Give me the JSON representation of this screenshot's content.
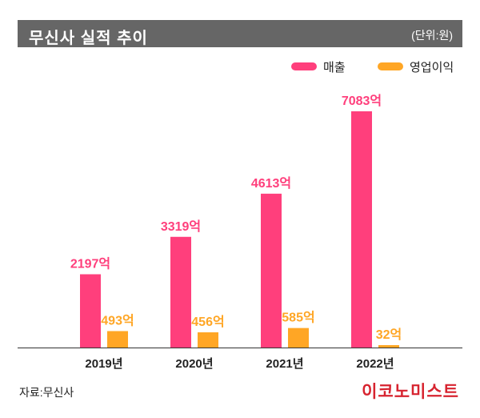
{
  "header": {
    "title": "무신사 실적 추이",
    "unit": "(단위:원)"
  },
  "footer": {
    "source": "자료:무신사",
    "brand": "이코노미스트"
  },
  "colors": {
    "revenue": "#ff3f7c",
    "operating_profit": "#ffa625",
    "header_bg": "#666666",
    "brand": "#d7232f"
  },
  "chart_data": {
    "type": "bar",
    "title": "무신사 실적 추이",
    "unit": "(단위:원)",
    "categories": [
      "2019년",
      "2020년",
      "2021년",
      "2022년"
    ],
    "series": [
      {
        "name": "매출",
        "values": [
          2197,
          3319,
          4613,
          7083
        ],
        "labels": [
          "2197억",
          "3319억",
          "4613억",
          "7083억"
        ],
        "color": "#ff3f7c"
      },
      {
        "name": "영업이익",
        "values": [
          493,
          456,
          585,
          32
        ],
        "labels": [
          "493억",
          "456억",
          "585억",
          "32억"
        ],
        "color": "#ffa625"
      }
    ],
    "ylim": [
      0,
      7500
    ],
    "grid": false,
    "legend": "top-right"
  }
}
